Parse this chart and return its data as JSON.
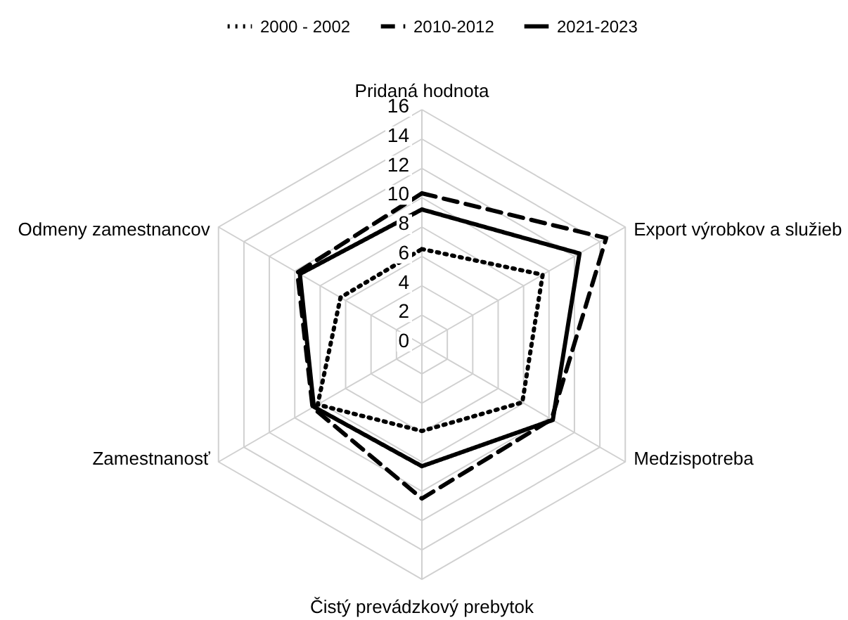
{
  "chart_data": {
    "type": "radar",
    "categories": [
      "Pridaná hodnota",
      "Export výrobkov a služieb",
      "Medzispotreba",
      "Čistý prevádzkový prebytok",
      "Zamestnanosť",
      "Odmeny zamestnancov"
    ],
    "ylim": [
      0,
      16
    ],
    "yticks": [
      0,
      2,
      4,
      6,
      8,
      10,
      12,
      14,
      16
    ],
    "grid": true,
    "legend": "top",
    "series": [
      {
        "name": "2000 - 2002",
        "color": "#000000",
        "line_style": "dotted",
        "values": [
          6.5,
          9.5,
          7.9,
          5.9,
          8.2,
          6.4
        ]
      },
      {
        "name": "2010-2012",
        "color": "#000000",
        "line_style": "dashed",
        "values": [
          10.3,
          14.5,
          10.2,
          10.5,
          8.6,
          9.8
        ]
      },
      {
        "name": "2021-2023",
        "color": "#000000",
        "line_style": "solid",
        "values": [
          9.2,
          12.4,
          10.3,
          8.3,
          8.5,
          9.6
        ]
      }
    ]
  }
}
